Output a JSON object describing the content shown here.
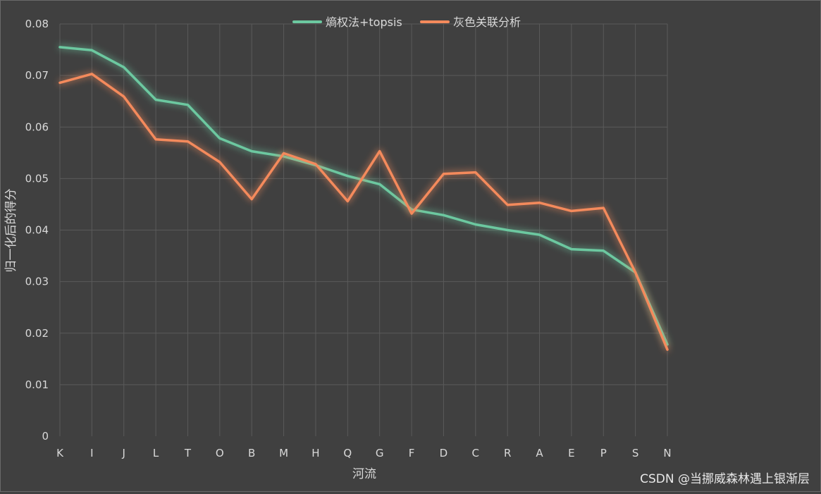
{
  "chart_data": {
    "type": "line",
    "title": "",
    "xlabel": "河流",
    "ylabel": "归一化后的得分",
    "categories": [
      "K",
      "I",
      "J",
      "L",
      "T",
      "O",
      "B",
      "M",
      "H",
      "Q",
      "G",
      "F",
      "D",
      "C",
      "R",
      "A",
      "E",
      "P",
      "S",
      "N"
    ],
    "ylim": [
      0,
      0.08
    ],
    "yticks": [
      "0",
      "0.01",
      "0.02",
      "0.03",
      "0.04",
      "0.05",
      "0.06",
      "0.07",
      "0.08"
    ],
    "ytick_values": [
      0,
      0.01,
      0.02,
      0.03,
      0.04,
      0.05,
      0.06,
      0.07,
      0.08
    ],
    "grid": true,
    "legend_position": "top-center",
    "series": [
      {
        "name": "熵权法+topsis",
        "color": "#6cc8a0",
        "values": [
          0.0755,
          0.0749,
          0.0716,
          0.0653,
          0.0643,
          0.0578,
          0.0553,
          0.0543,
          0.0526,
          0.0505,
          0.0489,
          0.044,
          0.0429,
          0.0411,
          0.04,
          0.0391,
          0.0363,
          0.036,
          0.0318,
          0.0178
        ]
      },
      {
        "name": "灰色关联分析",
        "color": "#f48a5c",
        "values": [
          0.0686,
          0.0703,
          0.0659,
          0.0576,
          0.0572,
          0.0532,
          0.046,
          0.0549,
          0.0528,
          0.0456,
          0.0553,
          0.0432,
          0.0509,
          0.0512,
          0.0449,
          0.0453,
          0.0437,
          0.0443,
          0.0318,
          0.0168
        ]
      }
    ]
  },
  "watermark": "CSDN @当挪威森林遇上银渐层"
}
